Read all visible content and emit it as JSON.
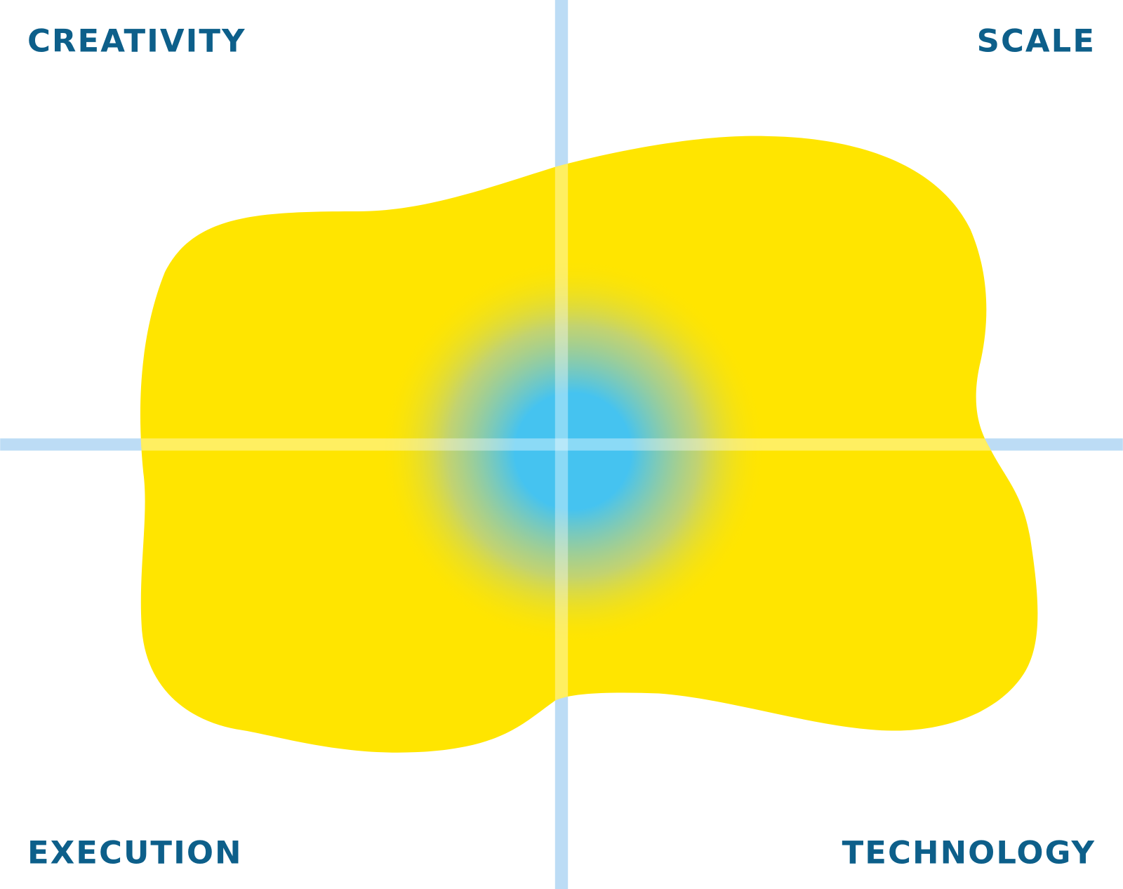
{
  "labels": {
    "top_left": "CREATIVITY",
    "top_right": "SCALE",
    "bottom_left": "EXECUTION",
    "bottom_right": "TECHNOLOGY"
  }
}
